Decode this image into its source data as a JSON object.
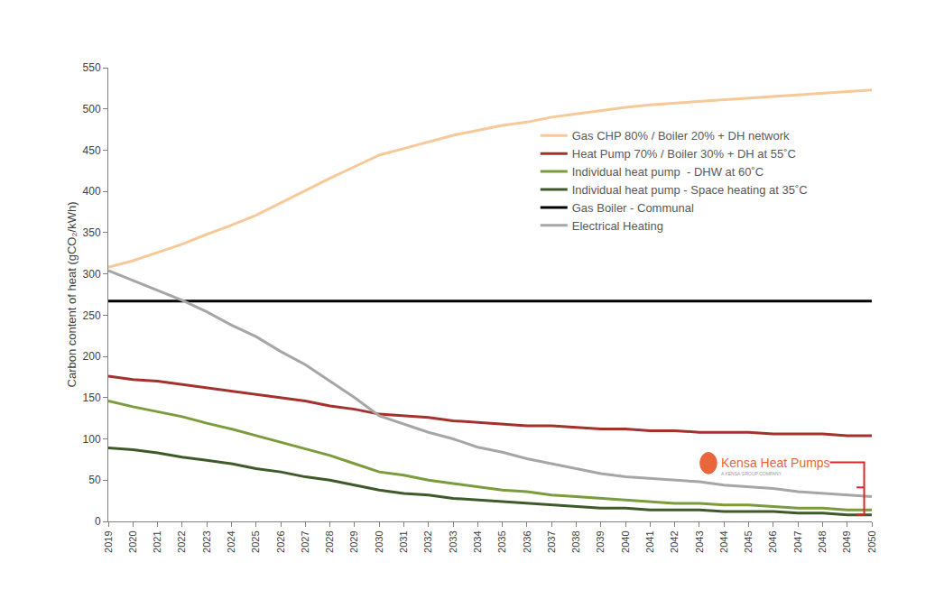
{
  "chart_data": {
    "type": "line",
    "y_label": "Carbon content of heat (gCO₂/kWh)",
    "categories": [
      "2019",
      "2020",
      "2021",
      "2022",
      "2023",
      "2024",
      "2025",
      "2026",
      "2027",
      "2028",
      "2029",
      "2030",
      "2031",
      "2032",
      "2033",
      "2034",
      "2035",
      "2036",
      "2037",
      "2038",
      "2039",
      "2040",
      "2041",
      "2042",
      "2043",
      "2044",
      "2045",
      "2046",
      "2047",
      "2048",
      "2049",
      "2050"
    ],
    "ylim": [
      0,
      550
    ],
    "yticks": [
      0,
      50,
      100,
      150,
      200,
      250,
      300,
      350,
      400,
      450,
      500,
      550
    ],
    "grid": false,
    "legend": "upper right",
    "series": [
      {
        "name": "Gas CHP 80% / Boiler 20% + DH network",
        "color": "#f7c898",
        "values": [
          308,
          316,
          326,
          336,
          348,
          359,
          371,
          386,
          401,
          416,
          430,
          444,
          452,
          460,
          468,
          474,
          480,
          484,
          490,
          494,
          498,
          502,
          505,
          507,
          509,
          511,
          513,
          515,
          517,
          519,
          521,
          523
        ]
      },
      {
        "name": "Heat Pump 70% / Boiler 30% + DH at 55˚C",
        "color": "#a3322c",
        "values": [
          176,
          172,
          170,
          166,
          162,
          158,
          154,
          150,
          146,
          140,
          136,
          130,
          128,
          126,
          122,
          120,
          118,
          116,
          116,
          114,
          112,
          112,
          110,
          110,
          108,
          108,
          108,
          106,
          106,
          106,
          104,
          104
        ]
      },
      {
        "name": "Individual heat pump  - DHW at 60˚C",
        "color": "#7b9c3c",
        "values": [
          146,
          139,
          133,
          127,
          119,
          112,
          104,
          96,
          88,
          80,
          70,
          60,
          56,
          50,
          46,
          42,
          38,
          36,
          32,
          30,
          28,
          26,
          24,
          22,
          22,
          20,
          20,
          18,
          16,
          16,
          14,
          14
        ]
      },
      {
        "name": "Individual heat pump - Space heating at 35˚C",
        "color": "#3f5a2a",
        "values": [
          89,
          87,
          83,
          78,
          74,
          70,
          64,
          60,
          54,
          50,
          44,
          38,
          34,
          32,
          28,
          26,
          24,
          22,
          20,
          18,
          16,
          16,
          14,
          14,
          14,
          12,
          12,
          12,
          10,
          10,
          8,
          8
        ]
      },
      {
        "name": "Gas Boiler - Communal",
        "color": "#000000",
        "values": [
          267,
          267,
          267,
          267,
          267,
          267,
          267,
          267,
          267,
          267,
          267,
          267,
          267,
          267,
          267,
          267,
          267,
          267,
          267,
          267,
          267,
          267,
          267,
          267,
          267,
          267,
          267,
          267,
          267,
          267,
          267,
          267
        ]
      },
      {
        "name": "Electrical Heating",
        "color": "#a6a6a6",
        "values": [
          304,
          292,
          280,
          268,
          254,
          238,
          224,
          206,
          190,
          170,
          150,
          128,
          118,
          108,
          100,
          90,
          84,
          76,
          70,
          64,
          58,
          54,
          52,
          50,
          48,
          44,
          42,
          40,
          36,
          34,
          32,
          30
        ]
      }
    ],
    "annotations": [
      {
        "text": "Kensa Heat Pumps"
      },
      {
        "text": "A KENSA GROUP COMPANY"
      }
    ]
  }
}
